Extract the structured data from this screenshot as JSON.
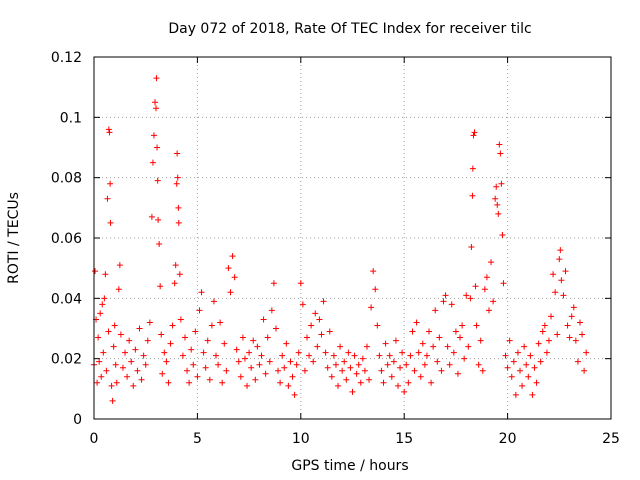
{
  "chart_data": {
    "type": "scatter",
    "title": "Day 072 of 2018, Rate Of TEC Index for receiver tilc",
    "xlabel": "GPS time / hours",
    "ylabel": "ROTI / TECUs",
    "xlim": [
      0,
      25
    ],
    "ylim": [
      0,
      0.12
    ],
    "xticks": [
      0,
      5,
      10,
      15,
      20,
      25
    ],
    "xtick_labels": [
      "0",
      "5",
      "10",
      "15",
      "20",
      "25"
    ],
    "yticks": [
      0,
      0.02,
      0.04,
      0.06,
      0.08,
      0.1,
      0.12
    ],
    "ytick_labels": [
      "0",
      "0.02",
      "0.04",
      "0.06",
      "0.08",
      "0.1",
      "0.12"
    ],
    "grid": true,
    "marker": "plus",
    "color": "#ff0000",
    "series": [
      {
        "name": "ROTI",
        "points": [
          [
            0.0,
            0.018
          ],
          [
            0.05,
            0.049
          ],
          [
            0.1,
            0.033
          ],
          [
            0.15,
            0.012
          ],
          [
            0.2,
            0.027
          ],
          [
            0.25,
            0.019
          ],
          [
            0.3,
            0.035
          ],
          [
            0.35,
            0.014
          ],
          [
            0.4,
            0.038
          ],
          [
            0.45,
            0.022
          ],
          [
            0.5,
            0.04
          ],
          [
            0.55,
            0.048
          ],
          [
            0.6,
            0.016
          ],
          [
            0.65,
            0.073
          ],
          [
            0.7,
            0.029
          ],
          [
            0.72,
            0.096
          ],
          [
            0.75,
            0.095
          ],
          [
            0.78,
            0.078
          ],
          [
            0.8,
            0.065
          ],
          [
            0.85,
            0.011
          ],
          [
            0.9,
            0.006
          ],
          [
            0.95,
            0.024
          ],
          [
            1.0,
            0.031
          ],
          [
            1.05,
            0.018
          ],
          [
            1.1,
            0.012
          ],
          [
            1.2,
            0.043
          ],
          [
            1.25,
            0.051
          ],
          [
            1.3,
            0.028
          ],
          [
            1.4,
            0.017
          ],
          [
            1.5,
            0.022
          ],
          [
            1.6,
            0.014
          ],
          [
            1.7,
            0.026
          ],
          [
            1.8,
            0.019
          ],
          [
            1.9,
            0.011
          ],
          [
            2.0,
            0.023
          ],
          [
            2.1,
            0.016
          ],
          [
            2.2,
            0.03
          ],
          [
            2.3,
            0.013
          ],
          [
            2.4,
            0.021
          ],
          [
            2.5,
            0.018
          ],
          [
            2.6,
            0.026
          ],
          [
            2.7,
            0.032
          ],
          [
            2.8,
            0.067
          ],
          [
            2.85,
            0.085
          ],
          [
            2.9,
            0.094
          ],
          [
            2.95,
            0.105
          ],
          [
            3.0,
            0.103
          ],
          [
            3.02,
            0.113
          ],
          [
            3.05,
            0.09
          ],
          [
            3.08,
            0.079
          ],
          [
            3.1,
            0.066
          ],
          [
            3.15,
            0.058
          ],
          [
            3.2,
            0.044
          ],
          [
            3.25,
            0.028
          ],
          [
            3.3,
            0.015
          ],
          [
            3.4,
            0.022
          ],
          [
            3.5,
            0.019
          ],
          [
            3.6,
            0.012
          ],
          [
            3.7,
            0.025
          ],
          [
            3.8,
            0.031
          ],
          [
            3.9,
            0.045
          ],
          [
            3.95,
            0.051
          ],
          [
            4.0,
            0.078
          ],
          [
            4.02,
            0.088
          ],
          [
            4.05,
            0.08
          ],
          [
            4.08,
            0.07
          ],
          [
            4.1,
            0.065
          ],
          [
            4.15,
            0.048
          ],
          [
            4.2,
            0.033
          ],
          [
            4.3,
            0.021
          ],
          [
            4.4,
            0.027
          ],
          [
            4.5,
            0.016
          ],
          [
            4.6,
            0.012
          ],
          [
            4.7,
            0.023
          ],
          [
            4.8,
            0.018
          ],
          [
            4.9,
            0.029
          ],
          [
            5.0,
            0.014
          ],
          [
            5.1,
            0.036
          ],
          [
            5.2,
            0.042
          ],
          [
            5.3,
            0.022
          ],
          [
            5.4,
            0.017
          ],
          [
            5.5,
            0.026
          ],
          [
            5.6,
            0.013
          ],
          [
            5.7,
            0.031
          ],
          [
            5.8,
            0.039
          ],
          [
            5.9,
            0.021
          ],
          [
            6.0,
            0.018
          ],
          [
            6.1,
            0.032
          ],
          [
            6.2,
            0.012
          ],
          [
            6.3,
            0.025
          ],
          [
            6.4,
            0.016
          ],
          [
            6.5,
            0.05
          ],
          [
            6.6,
            0.042
          ],
          [
            6.7,
            0.054
          ],
          [
            6.8,
            0.047
          ],
          [
            6.9,
            0.023
          ],
          [
            7.0,
            0.019
          ],
          [
            7.1,
            0.014
          ],
          [
            7.2,
            0.027
          ],
          [
            7.3,
            0.02
          ],
          [
            7.4,
            0.011
          ],
          [
            7.5,
            0.022
          ],
          [
            7.6,
            0.017
          ],
          [
            7.7,
            0.026
          ],
          [
            7.8,
            0.013
          ],
          [
            7.9,
            0.024
          ],
          [
            8.0,
            0.018
          ],
          [
            8.1,
            0.021
          ],
          [
            8.2,
            0.033
          ],
          [
            8.3,
            0.015
          ],
          [
            8.4,
            0.027
          ],
          [
            8.5,
            0.019
          ],
          [
            8.6,
            0.036
          ],
          [
            8.7,
            0.045
          ],
          [
            8.8,
            0.03
          ],
          [
            8.9,
            0.016
          ],
          [
            9.0,
            0.012
          ],
          [
            9.1,
            0.021
          ],
          [
            9.2,
            0.017
          ],
          [
            9.3,
            0.025
          ],
          [
            9.4,
            0.011
          ],
          [
            9.5,
            0.019
          ],
          [
            9.6,
            0.014
          ],
          [
            9.7,
            0.008
          ],
          [
            9.8,
            0.018
          ],
          [
            9.9,
            0.022
          ],
          [
            10.0,
            0.045
          ],
          [
            10.1,
            0.038
          ],
          [
            10.2,
            0.016
          ],
          [
            10.3,
            0.027
          ],
          [
            10.4,
            0.021
          ],
          [
            10.5,
            0.031
          ],
          [
            10.6,
            0.019
          ],
          [
            10.7,
            0.035
          ],
          [
            10.8,
            0.024
          ],
          [
            10.9,
            0.033
          ],
          [
            11.0,
            0.028
          ],
          [
            11.1,
            0.039
          ],
          [
            11.2,
            0.022
          ],
          [
            11.3,
            0.017
          ],
          [
            11.4,
            0.029
          ],
          [
            11.5,
            0.014
          ],
          [
            11.6,
            0.021
          ],
          [
            11.7,
            0.018
          ],
          [
            11.8,
            0.011
          ],
          [
            11.9,
            0.024
          ],
          [
            12.0,
            0.016
          ],
          [
            12.1,
            0.019
          ],
          [
            12.2,
            0.013
          ],
          [
            12.3,
            0.022
          ],
          [
            12.4,
            0.017
          ],
          [
            12.5,
            0.009
          ],
          [
            12.6,
            0.021
          ],
          [
            12.7,
            0.015
          ],
          [
            12.8,
            0.018
          ],
          [
            12.9,
            0.012
          ],
          [
            13.0,
            0.02
          ],
          [
            13.1,
            0.016
          ],
          [
            13.2,
            0.024
          ],
          [
            13.3,
            0.013
          ],
          [
            13.4,
            0.037
          ],
          [
            13.5,
            0.049
          ],
          [
            13.6,
            0.043
          ],
          [
            13.7,
            0.031
          ],
          [
            13.8,
            0.021
          ],
          [
            13.9,
            0.016
          ],
          [
            14.0,
            0.012
          ],
          [
            14.1,
            0.025
          ],
          [
            14.2,
            0.018
          ],
          [
            14.3,
            0.021
          ],
          [
            14.4,
            0.014
          ],
          [
            14.5,
            0.019
          ],
          [
            14.6,
            0.026
          ],
          [
            14.7,
            0.011
          ],
          [
            14.8,
            0.017
          ],
          [
            14.9,
            0.022
          ],
          [
            15.0,
            0.009
          ],
          [
            15.1,
            0.018
          ],
          [
            15.2,
            0.012
          ],
          [
            15.3,
            0.021
          ],
          [
            15.4,
            0.029
          ],
          [
            15.5,
            0.016
          ],
          [
            15.6,
            0.032
          ],
          [
            15.7,
            0.022
          ],
          [
            15.8,
            0.014
          ],
          [
            15.9,
            0.025
          ],
          [
            16.0,
            0.018
          ],
          [
            16.1,
            0.021
          ],
          [
            16.2,
            0.029
          ],
          [
            16.3,
            0.012
          ],
          [
            16.4,
            0.024
          ],
          [
            16.5,
            0.036
          ],
          [
            16.6,
            0.019
          ],
          [
            16.7,
            0.027
          ],
          [
            16.8,
            0.016
          ],
          [
            16.9,
            0.039
          ],
          [
            17.0,
            0.041
          ],
          [
            17.1,
            0.024
          ],
          [
            17.2,
            0.018
          ],
          [
            17.3,
            0.038
          ],
          [
            17.4,
            0.022
          ],
          [
            17.5,
            0.029
          ],
          [
            17.6,
            0.015
          ],
          [
            17.7,
            0.027
          ],
          [
            17.8,
            0.031
          ],
          [
            17.9,
            0.02
          ],
          [
            18.0,
            0.041
          ],
          [
            18.1,
            0.024
          ],
          [
            18.2,
            0.04
          ],
          [
            18.25,
            0.057
          ],
          [
            18.3,
            0.074
          ],
          [
            18.32,
            0.083
          ],
          [
            18.35,
            0.094
          ],
          [
            18.4,
            0.095
          ],
          [
            18.45,
            0.044
          ],
          [
            18.5,
            0.031
          ],
          [
            18.6,
            0.018
          ],
          [
            18.7,
            0.026
          ],
          [
            18.8,
            0.016
          ],
          [
            18.9,
            0.043
          ],
          [
            19.0,
            0.047
          ],
          [
            19.1,
            0.036
          ],
          [
            19.2,
            0.052
          ],
          [
            19.3,
            0.039
          ],
          [
            19.4,
            0.073
          ],
          [
            19.45,
            0.077
          ],
          [
            19.5,
            0.071
          ],
          [
            19.55,
            0.068
          ],
          [
            19.6,
            0.091
          ],
          [
            19.65,
            0.088
          ],
          [
            19.7,
            0.078
          ],
          [
            19.75,
            0.061
          ],
          [
            19.8,
            0.045
          ],
          [
            19.9,
            0.021
          ],
          [
            20.0,
            0.017
          ],
          [
            20.1,
            0.026
          ],
          [
            20.2,
            0.014
          ],
          [
            20.3,
            0.019
          ],
          [
            20.4,
            0.008
          ],
          [
            20.5,
            0.022
          ],
          [
            20.6,
            0.016
          ],
          [
            20.7,
            0.011
          ],
          [
            20.8,
            0.024
          ],
          [
            20.9,
            0.018
          ],
          [
            21.0,
            0.014
          ],
          [
            21.1,
            0.021
          ],
          [
            21.2,
            0.008
          ],
          [
            21.3,
            0.017
          ],
          [
            21.4,
            0.012
          ],
          [
            21.5,
            0.025
          ],
          [
            21.6,
            0.019
          ],
          [
            21.7,
            0.029
          ],
          [
            21.8,
            0.031
          ],
          [
            21.9,
            0.022
          ],
          [
            22.0,
            0.026
          ],
          [
            22.1,
            0.034
          ],
          [
            22.2,
            0.048
          ],
          [
            22.3,
            0.042
          ],
          [
            22.4,
            0.028
          ],
          [
            22.5,
            0.053
          ],
          [
            22.55,
            0.056
          ],
          [
            22.6,
            0.046
          ],
          [
            22.7,
            0.041
          ],
          [
            22.8,
            0.049
          ],
          [
            22.9,
            0.031
          ],
          [
            23.0,
            0.027
          ],
          [
            23.1,
            0.034
          ],
          [
            23.2,
            0.037
          ],
          [
            23.3,
            0.026
          ],
          [
            23.4,
            0.019
          ],
          [
            23.5,
            0.032
          ],
          [
            23.6,
            0.028
          ],
          [
            23.7,
            0.016
          ],
          [
            23.8,
            0.022
          ]
        ]
      }
    ]
  }
}
